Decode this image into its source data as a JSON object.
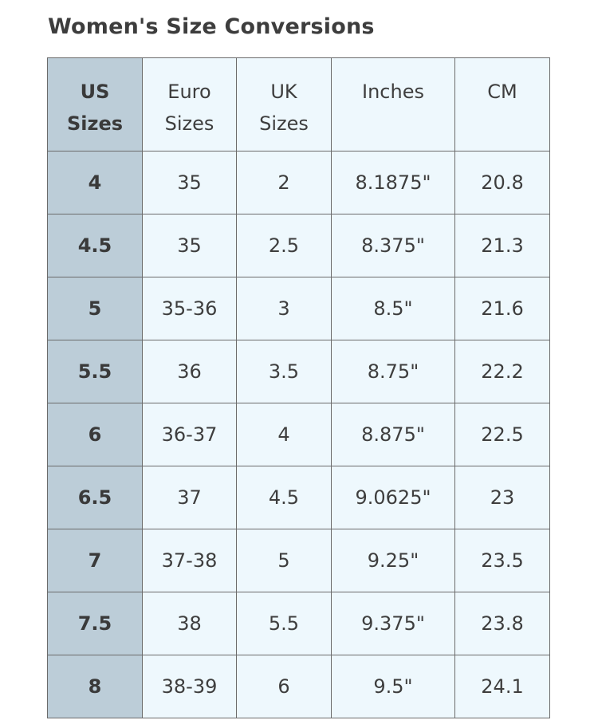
{
  "title": "Women's Size Conversions",
  "header": {
    "us": [
      "US",
      "Sizes"
    ],
    "euro": [
      "Euro",
      "Sizes"
    ],
    "uk": [
      "UK",
      "Sizes"
    ],
    "inches": [
      "Inches"
    ],
    "cm": [
      "CM"
    ]
  },
  "rows": [
    {
      "us": "4",
      "euro": "35",
      "uk": "2",
      "inches": "8.1875\"",
      "cm": "20.8"
    },
    {
      "us": "4.5",
      "euro": "35",
      "uk": "2.5",
      "inches": "8.375\"",
      "cm": "21.3"
    },
    {
      "us": "5",
      "euro": "35-36",
      "uk": "3",
      "inches": "8.5\"",
      "cm": "21.6"
    },
    {
      "us": "5.5",
      "euro": "36",
      "uk": "3.5",
      "inches": "8.75\"",
      "cm": "22.2"
    },
    {
      "us": "6",
      "euro": "36-37",
      "uk": "4",
      "inches": "8.875\"",
      "cm": "22.5"
    },
    {
      "us": "6.5",
      "euro": "37",
      "uk": "4.5",
      "inches": "9.0625\"",
      "cm": "23"
    },
    {
      "us": "7",
      "euro": "37-38",
      "uk": "5",
      "inches": "9.25\"",
      "cm": "23.5"
    },
    {
      "us": "7.5",
      "euro": "38",
      "uk": "5.5",
      "inches": "9.375\"",
      "cm": "23.8"
    },
    {
      "us": "8",
      "euro": "38-39",
      "uk": "6",
      "inches": "9.5\"",
      "cm": "24.1"
    }
  ],
  "colors": {
    "header_first_col_bg": "#bccdd8",
    "cell_bg": "#eef8fd",
    "border": "#6b6b6b",
    "text": "#3e3e3e"
  }
}
